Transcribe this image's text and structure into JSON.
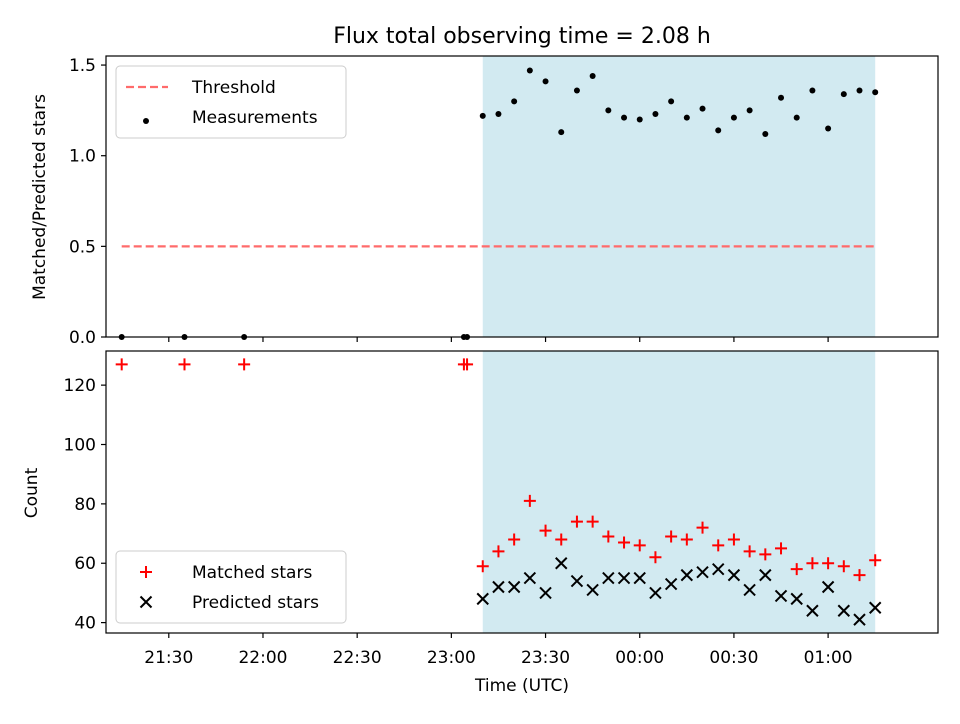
{
  "chart_data": {
    "type": "scatter",
    "title": "Flux total observing time = 2.08 h",
    "xlabel": "Time (UTC)",
    "xlim": [
      "21:10",
      "01:35"
    ],
    "x_ticks": [
      "21:30",
      "22:00",
      "22:30",
      "23:00",
      "23:30",
      "00:00",
      "00:30",
      "01:00"
    ],
    "highlight_window": {
      "start": "23:10",
      "end": "01:15",
      "color": "#add8e6"
    },
    "panels": [
      {
        "id": "ratio",
        "ylabel": "Matched/Predicted stars",
        "ylim": [
          0,
          1.55
        ],
        "y_ticks": [
          "0.0",
          "0.5",
          "1.0",
          "1.5"
        ],
        "legend_position": "top-left",
        "threshold": {
          "name": "Threshold",
          "value": 0.5,
          "x_start": "21:15",
          "x_end": "01:15",
          "color": "#ff6b6b"
        },
        "series": [
          {
            "name": "Measurements",
            "marker": "dot",
            "color": "#000000",
            "points": [
              [
                "21:15",
                0.0
              ],
              [
                "21:35",
                0.0
              ],
              [
                "21:54",
                0.0
              ],
              [
                "23:04",
                0.0
              ],
              [
                "23:05",
                0.0
              ],
              [
                "23:10",
                1.22
              ],
              [
                "23:15",
                1.23
              ],
              [
                "23:20",
                1.3
              ],
              [
                "23:25",
                1.47
              ],
              [
                "23:30",
                1.41
              ],
              [
                "23:35",
                1.13
              ],
              [
                "23:40",
                1.36
              ],
              [
                "23:45",
                1.44
              ],
              [
                "23:50",
                1.25
              ],
              [
                "23:55",
                1.21
              ],
              [
                "00:00",
                1.2
              ],
              [
                "00:05",
                1.23
              ],
              [
                "00:10",
                1.3
              ],
              [
                "00:15",
                1.21
              ],
              [
                "00:20",
                1.26
              ],
              [
                "00:25",
                1.14
              ],
              [
                "00:30",
                1.21
              ],
              [
                "00:35",
                1.25
              ],
              [
                "00:40",
                1.12
              ],
              [
                "00:45",
                1.32
              ],
              [
                "00:50",
                1.21
              ],
              [
                "00:55",
                1.36
              ],
              [
                "01:00",
                1.15
              ],
              [
                "01:05",
                1.34
              ],
              [
                "01:10",
                1.36
              ],
              [
                "01:15",
                1.35
              ]
            ]
          }
        ]
      },
      {
        "id": "count",
        "ylabel": "Count",
        "ylim": [
          36.5,
          131.5
        ],
        "y_ticks": [
          "40",
          "60",
          "80",
          "100",
          "120"
        ],
        "legend_position": "bottom-left",
        "series": [
          {
            "name": "Matched stars",
            "marker": "plus",
            "color": "#ff0000",
            "points": [
              [
                "21:15",
                127
              ],
              [
                "21:35",
                127
              ],
              [
                "21:54",
                127
              ],
              [
                "23:04",
                127
              ],
              [
                "23:05",
                127
              ],
              [
                "23:10",
                59
              ],
              [
                "23:15",
                64
              ],
              [
                "23:20",
                68
              ],
              [
                "23:25",
                81
              ],
              [
                "23:30",
                71
              ],
              [
                "23:35",
                68
              ],
              [
                "23:40",
                74
              ],
              [
                "23:45",
                74
              ],
              [
                "23:50",
                69
              ],
              [
                "23:55",
                67
              ],
              [
                "00:00",
                66
              ],
              [
                "00:05",
                62
              ],
              [
                "00:10",
                69
              ],
              [
                "00:15",
                68
              ],
              [
                "00:20",
                72
              ],
              [
                "00:25",
                66
              ],
              [
                "00:30",
                68
              ],
              [
                "00:35",
                64
              ],
              [
                "00:40",
                63
              ],
              [
                "00:45",
                65
              ],
              [
                "00:50",
                58
              ],
              [
                "00:55",
                60
              ],
              [
                "01:00",
                60
              ],
              [
                "01:05",
                59
              ],
              [
                "01:10",
                56
              ],
              [
                "01:15",
                61
              ]
            ]
          },
          {
            "name": "Predicted stars",
            "marker": "x",
            "color": "#000000",
            "points": [
              [
                "23:10",
                48
              ],
              [
                "23:15",
                52
              ],
              [
                "23:20",
                52
              ],
              [
                "23:25",
                55
              ],
              [
                "23:30",
                50
              ],
              [
                "23:35",
                60
              ],
              [
                "23:40",
                54
              ],
              [
                "23:45",
                51
              ],
              [
                "23:50",
                55
              ],
              [
                "23:55",
                55
              ],
              [
                "00:00",
                55
              ],
              [
                "00:05",
                50
              ],
              [
                "00:10",
                53
              ],
              [
                "00:15",
                56
              ],
              [
                "00:20",
                57
              ],
              [
                "00:25",
                58
              ],
              [
                "00:30",
                56
              ],
              [
                "00:35",
                51
              ],
              [
                "00:40",
                56
              ],
              [
                "00:45",
                49
              ],
              [
                "00:50",
                48
              ],
              [
                "00:55",
                44
              ],
              [
                "01:00",
                52
              ],
              [
                "01:05",
                44
              ],
              [
                "01:10",
                41
              ],
              [
                "01:15",
                45
              ]
            ]
          }
        ]
      }
    ]
  }
}
